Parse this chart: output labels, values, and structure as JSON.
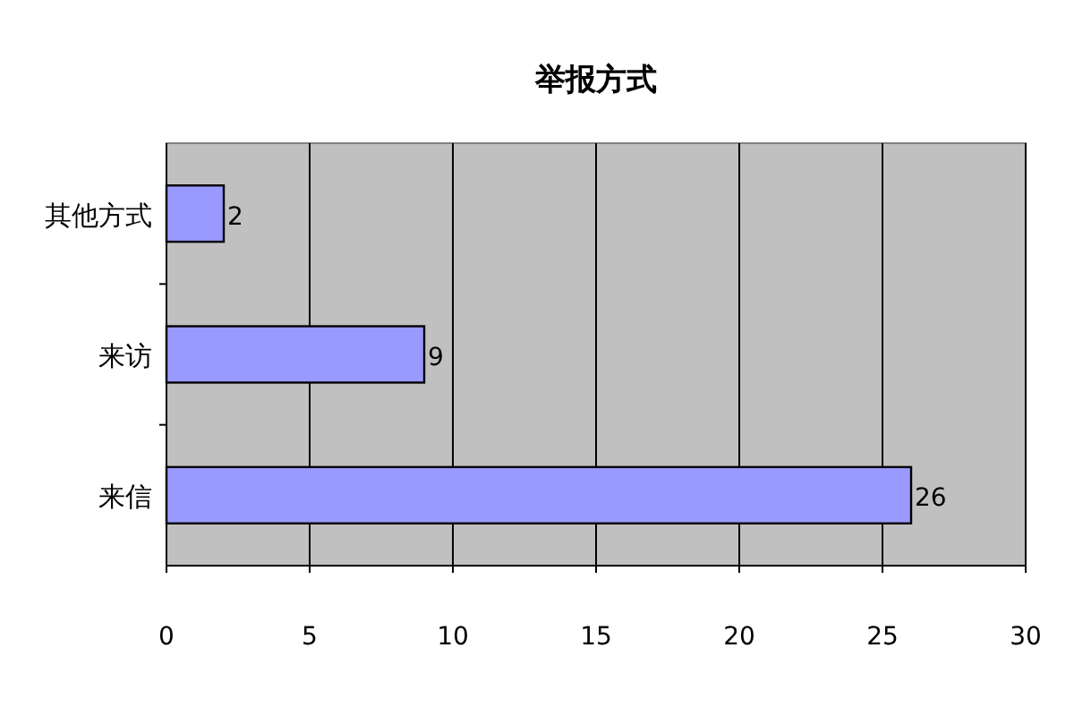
{
  "chart_data": {
    "type": "bar",
    "orientation": "horizontal",
    "title": "举报方式",
    "categories": [
      "其他方式",
      "来访",
      "来信"
    ],
    "values": [
      2,
      9,
      26
    ],
    "color": "#9999ff",
    "xlim": [
      0,
      30
    ],
    "xticks": [
      0,
      5,
      10,
      15,
      20,
      25,
      30
    ],
    "grid": "x",
    "data_labels": true
  }
}
